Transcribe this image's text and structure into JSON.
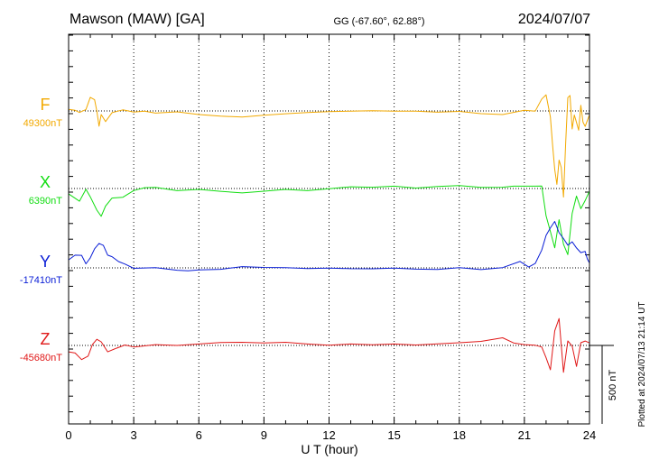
{
  "header": {
    "station": "Mawson (MAW)  [GA]",
    "coords": "GG (-67.60°,  62.88°)",
    "date": "2024/07/07"
  },
  "footer": {
    "plotted": "Plotted at 2024/07/13 21:14 UT"
  },
  "colors": {
    "F": "#f2a900",
    "X": "#11dd11",
    "Y": "#0a1ed6",
    "Z": "#e01818"
  },
  "chart_data": {
    "type": "line",
    "title": "Mawson (MAW)  [GA]",
    "xlabel": "U T (hour)",
    "xlim": [
      0,
      24
    ],
    "xticks": [
      0,
      3,
      6,
      9,
      12,
      15,
      18,
      21,
      24
    ],
    "scale_bar": {
      "value": 500,
      "label": "500 nT"
    },
    "series": [
      {
        "name": "F",
        "baseline_label": "49300nT",
        "baseline": 49300,
        "x": [
          0,
          0.3,
          0.5,
          0.8,
          1.0,
          1.2,
          1.3,
          1.4,
          1.5,
          1.7,
          2.0,
          2.5,
          3,
          3.5,
          4,
          5,
          6,
          7,
          8,
          9,
          10,
          11,
          12,
          13,
          14,
          15,
          16,
          17,
          18,
          19,
          20,
          21,
          21.5,
          21.8,
          22.0,
          22.2,
          22.3,
          22.4,
          22.5,
          22.6,
          22.7,
          22.8,
          22.9,
          23.0,
          23.1,
          23.2,
          23.3,
          23.4,
          23.5,
          23.6,
          23.7,
          23.8,
          24
        ],
        "values": [
          49310,
          49304,
          49290,
          49309,
          49387,
          49371,
          49298,
          49203,
          49277,
          49232,
          49289,
          49307,
          49293,
          49298,
          49286,
          49294,
          49277,
          49267,
          49261,
          49273,
          49282,
          49290,
          49296,
          49298,
          49302,
          49299,
          49298,
          49292,
          49297,
          49283,
          49277,
          49304,
          49299,
          49376,
          49403,
          49261,
          49084,
          48927,
          48832,
          48987,
          48940,
          48751,
          49093,
          49385,
          49398,
          49185,
          49274,
          49227,
          49177,
          49336,
          49229,
          49201,
          49276
        ]
      },
      {
        "name": "X",
        "baseline_label": "6390nT",
        "baseline": 6390,
        "x": [
          0,
          0.5,
          0.8,
          1.0,
          1.3,
          1.5,
          1.7,
          2.0,
          2.5,
          3,
          3.5,
          4,
          5,
          6,
          7,
          8,
          9,
          10,
          11,
          12,
          13,
          14,
          15,
          16,
          17,
          18,
          19,
          20,
          20.5,
          21,
          21.5,
          21.8,
          22.0,
          22.2,
          22.4,
          22.6,
          22.8,
          23.0,
          23.2,
          23.4,
          23.6,
          23.8,
          24
        ],
        "values": [
          6356,
          6309,
          6385,
          6337,
          6252,
          6213,
          6278,
          6329,
          6334,
          6377,
          6395,
          6397,
          6376,
          6384,
          6372,
          6362,
          6373,
          6384,
          6376,
          6389,
          6401,
          6398,
          6405,
          6393,
          6403,
          6409,
          6397,
          6398,
          6405,
          6405,
          6405,
          6406,
          6216,
          6116,
          6012,
          6191,
          6035,
          5969,
          6231,
          6342,
          6261,
          6313,
          6374
        ]
      },
      {
        "name": "Y",
        "baseline_label": "-17410nT",
        "baseline": -17410,
        "x": [
          0,
          0.3,
          0.6,
          0.8,
          1.0,
          1.2,
          1.4,
          1.6,
          1.8,
          2.0,
          2.3,
          2.6,
          3,
          4,
          5,
          5.5,
          6,
          7,
          8,
          9,
          10,
          11,
          12,
          13,
          14,
          15,
          16,
          17,
          18,
          19,
          20,
          20.8,
          21.2,
          21.5,
          21.8,
          22.0,
          22.2,
          22.4,
          22.6,
          22.8,
          23.0,
          23.2,
          23.4,
          23.6,
          23.8,
          23.9,
          24
        ],
        "values": [
          -17359,
          -17329,
          -17330,
          -17384,
          -17346,
          -17288,
          -17254,
          -17267,
          -17329,
          -17339,
          -17370,
          -17386,
          -17413,
          -17409,
          -17425,
          -17429,
          -17423,
          -17419,
          -17402,
          -17407,
          -17408,
          -17414,
          -17411,
          -17415,
          -17416,
          -17412,
          -17418,
          -17420,
          -17409,
          -17421,
          -17408,
          -17369,
          -17405,
          -17382,
          -17297,
          -17203,
          -17155,
          -17114,
          -17186,
          -17223,
          -17265,
          -17244,
          -17283,
          -17313,
          -17305,
          -17353,
          -17379
        ]
      },
      {
        "name": "Z",
        "baseline_label": "-45680nT",
        "baseline": -45680,
        "x": [
          0,
          0.3,
          0.6,
          0.9,
          1.1,
          1.3,
          1.5,
          1.8,
          2.2,
          2.6,
          3,
          3.5,
          4,
          5,
          6,
          7,
          8,
          9,
          10,
          11,
          12,
          13,
          14,
          15,
          16,
          17,
          18,
          19,
          20,
          20.5,
          21,
          21.5,
          21.8,
          22.0,
          22.2,
          22.4,
          22.6,
          22.8,
          23.0,
          23.2,
          23.4,
          23.6,
          23.8,
          24
        ],
        "values": [
          -45721,
          -45728,
          -45770,
          -45748,
          -45674,
          -45641,
          -45657,
          -45721,
          -45698,
          -45677,
          -45690,
          -45683,
          -45675,
          -45680,
          -45671,
          -45661,
          -45660,
          -45664,
          -45660,
          -45671,
          -45679,
          -45671,
          -45676,
          -45671,
          -45677,
          -45670,
          -45663,
          -45654,
          -45631,
          -45664,
          -45675,
          -45679,
          -45690,
          -45758,
          -45835,
          -45587,
          -45509,
          -45851,
          -45651,
          -45684,
          -45814,
          -45663,
          -45652,
          -45664
        ]
      }
    ]
  }
}
